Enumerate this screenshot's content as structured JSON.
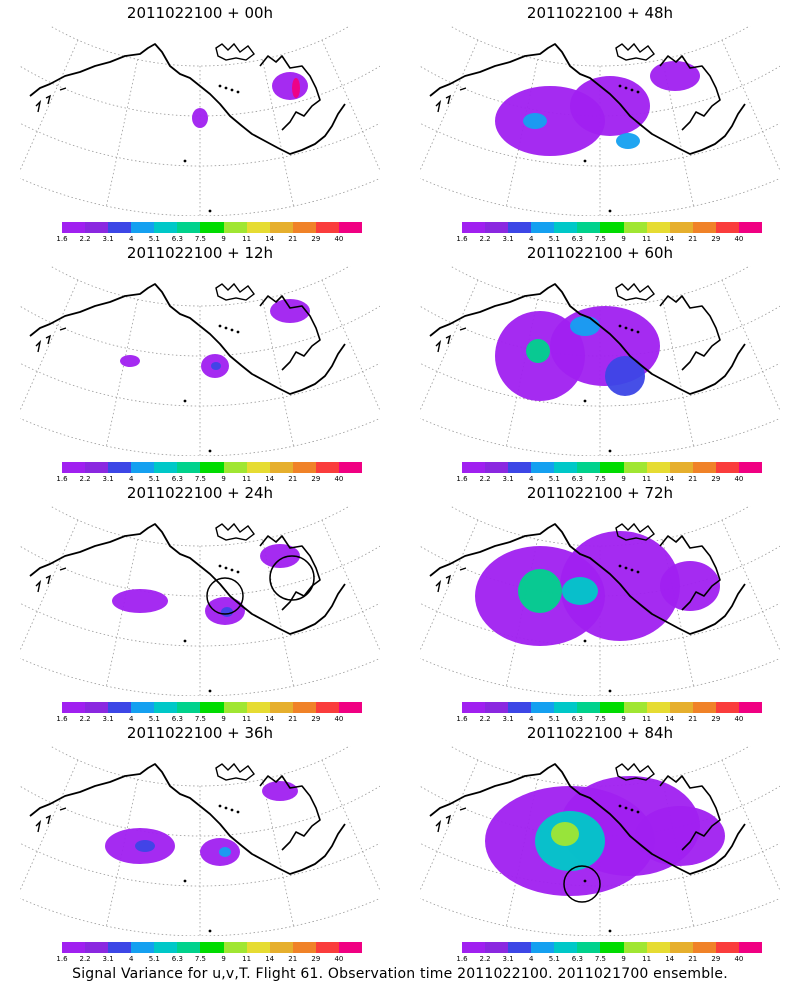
{
  "panels": [
    {
      "title": "2011022100 + 00h",
      "forecast_hour": 0
    },
    {
      "title": "2011022100 + 48h",
      "forecast_hour": 48
    },
    {
      "title": "2011022100 + 12h",
      "forecast_hour": 12
    },
    {
      "title": "2011022100 + 60h",
      "forecast_hour": 60
    },
    {
      "title": "2011022100 + 24h",
      "forecast_hour": 24
    },
    {
      "title": "2011022100 + 72h",
      "forecast_hour": 72
    },
    {
      "title": "2011022100 + 36h",
      "forecast_hour": 36
    },
    {
      "title": "2011022100 + 84h",
      "forecast_hour": 84
    }
  ],
  "colorbar": {
    "labels": [
      "1.6",
      "2.2",
      "3.1",
      "4",
      "5.1",
      "6.3",
      "7.5",
      "9",
      "11",
      "14",
      "21",
      "29",
      "40"
    ],
    "colors": [
      "#a020f0",
      "#8a28e0",
      "#3c46e6",
      "#14a0f0",
      "#00c8c8",
      "#00d28c",
      "#00dc00",
      "#a0e632",
      "#e6dc32",
      "#e6af2d",
      "#f08228",
      "#fa3c3c",
      "#f00082"
    ]
  },
  "footer": "Signal Variance for u,v,T. Flight 61. Observation time 2011022100. 2011021700 ensemble."
}
